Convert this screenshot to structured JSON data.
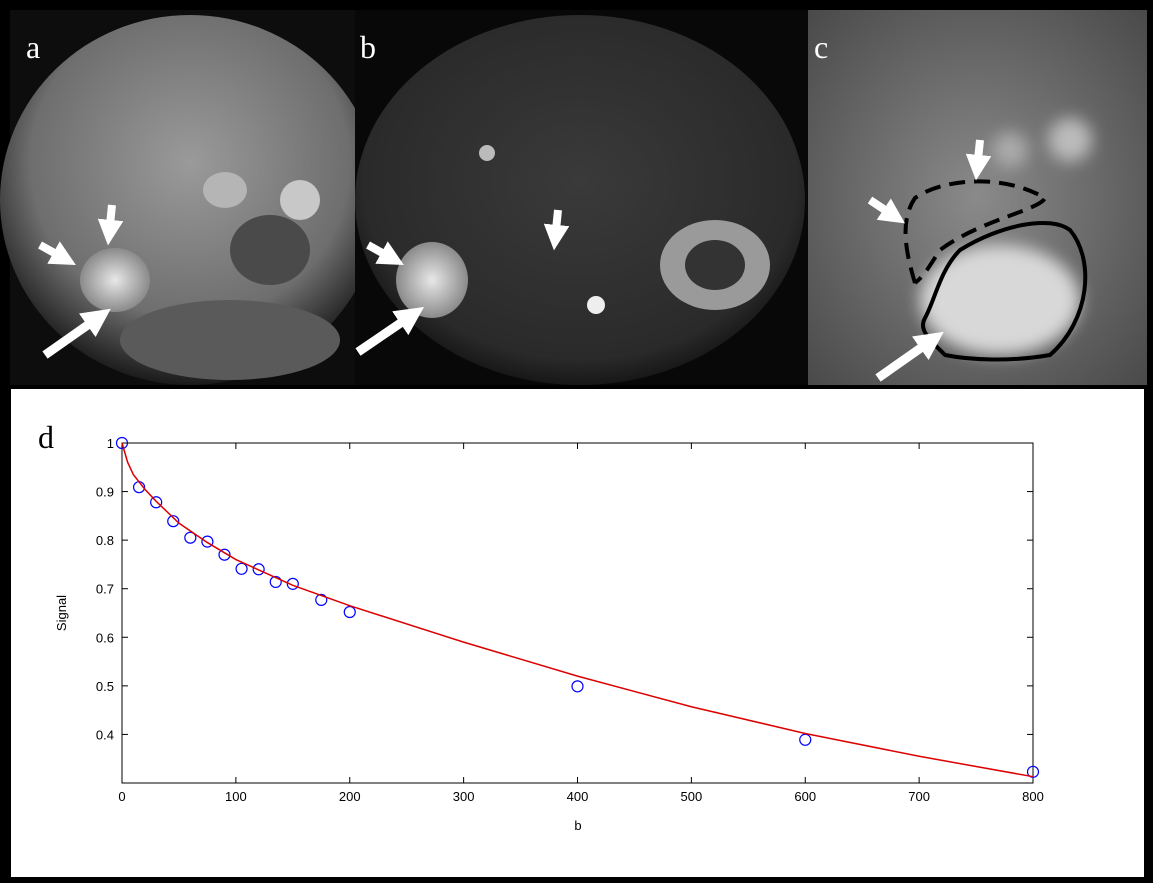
{
  "panels": [
    {
      "label": "a"
    },
    {
      "label": "b"
    },
    {
      "label": "c"
    },
    {
      "label": "d"
    }
  ],
  "chart_data": {
    "type": "scatter",
    "x_label": "b",
    "y_label": "Signal",
    "xlim": [
      0,
      800
    ],
    "ylim": [
      0.3,
      1
    ],
    "xticks": [
      0,
      100,
      200,
      300,
      400,
      500,
      600,
      700,
      800
    ],
    "yticks": [
      0.4,
      0.5,
      0.6,
      0.7,
      0.8,
      0.9,
      1
    ],
    "series": [
      {
        "type": "scatter",
        "color": "#0000ff",
        "x": [
          0,
          15,
          30,
          45,
          60,
          75,
          90,
          105,
          120,
          135,
          150,
          175,
          200,
          400,
          600,
          800
        ],
        "values": [
          1.0,
          0.909,
          0.878,
          0.839,
          0.805,
          0.797,
          0.77,
          0.741,
          0.74,
          0.714,
          0.71,
          0.677,
          0.652,
          0.499,
          0.389,
          0.323
        ]
      },
      {
        "type": "line",
        "color": "#dd0000",
        "x": [
          0,
          5,
          10,
          20,
          30,
          50,
          75,
          100,
          150,
          200,
          300,
          400,
          500,
          600,
          700,
          800
        ],
        "values": [
          1.0,
          0.96,
          0.935,
          0.905,
          0.88,
          0.835,
          0.795,
          0.76,
          0.707,
          0.665,
          0.59,
          0.52,
          0.457,
          0.402,
          0.355,
          0.313
        ]
      }
    ]
  }
}
